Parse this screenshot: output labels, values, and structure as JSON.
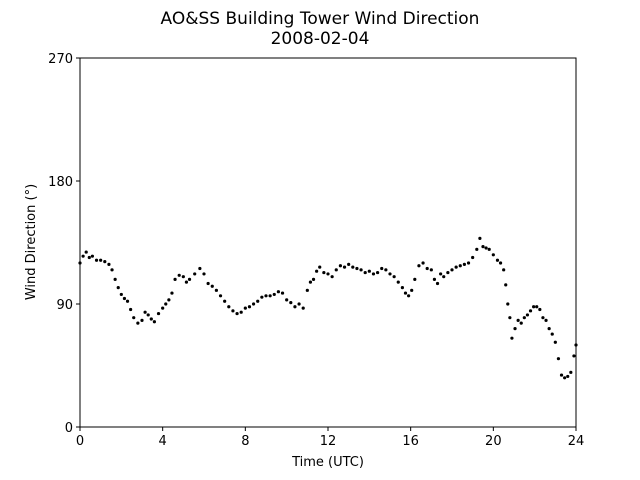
{
  "chart_data": {
    "type": "scatter",
    "title": "AO&SS Building Tower Wind Direction",
    "subtitle": "2008-02-04",
    "x_label": "Time (UTC)",
    "y_label": "Wind Direction (°)",
    "xlim": [
      0,
      24
    ],
    "xticks": [
      0,
      4,
      8,
      12,
      16,
      20,
      24
    ],
    "ylim": [
      0,
      270
    ],
    "yticks": [
      0,
      90,
      180,
      270
    ],
    "x": [
      0,
      0.15,
      0.3,
      0.45,
      0.6,
      0.8,
      1.0,
      1.2,
      1.4,
      1.55,
      1.7,
      1.85,
      2.0,
      2.15,
      2.3,
      2.45,
      2.6,
      2.8,
      3.0,
      3.15,
      3.3,
      3.45,
      3.6,
      3.8,
      4.0,
      4.15,
      4.3,
      4.45,
      4.6,
      4.8,
      5.0,
      5.15,
      5.3,
      5.55,
      5.8,
      6.0,
      6.2,
      6.4,
      6.6,
      6.8,
      7.0,
      7.2,
      7.4,
      7.6,
      7.8,
      8.0,
      8.2,
      8.4,
      8.6,
      8.8,
      9.0,
      9.2,
      9.4,
      9.6,
      9.8,
      10.0,
      10.2,
      10.4,
      10.6,
      10.8,
      11.0,
      11.15,
      11.3,
      11.45,
      11.6,
      11.8,
      12.0,
      12.2,
      12.4,
      12.6,
      12.8,
      13.0,
      13.2,
      13.4,
      13.6,
      13.8,
      14.0,
      14.2,
      14.4,
      14.6,
      14.8,
      15.0,
      15.2,
      15.4,
      15.6,
      15.75,
      15.9,
      16.05,
      16.2,
      16.4,
      16.6,
      16.8,
      17.0,
      17.15,
      17.3,
      17.45,
      17.6,
      17.8,
      18.0,
      18.2,
      18.4,
      18.6,
      18.8,
      19.0,
      19.2,
      19.35,
      19.5,
      19.65,
      19.8,
      20.0,
      20.2,
      20.35,
      20.5,
      20.6,
      20.7,
      20.8,
      20.9,
      21.05,
      21.2,
      21.35,
      21.5,
      21.65,
      21.8,
      21.95,
      22.1,
      22.25,
      22.4,
      22.55,
      22.7,
      22.85,
      23.0,
      23.15,
      23.3,
      23.45,
      23.6,
      23.75,
      23.9,
      24.0
    ],
    "series": [
      {
        "name": "Wind Direction",
        "color": "#000000",
        "values": [
          120,
          125,
          128,
          124,
          125,
          122,
          122,
          121,
          119,
          115,
          108,
          102,
          97,
          94,
          92,
          86,
          80,
          76,
          78,
          84,
          82,
          79,
          77,
          83,
          87,
          90,
          93,
          98,
          108,
          111,
          110,
          106,
          108,
          112,
          116,
          112,
          105,
          103,
          100,
          96,
          92,
          88,
          85,
          83,
          84,
          87,
          88,
          90,
          92,
          95,
          96,
          96,
          97,
          99,
          98,
          93,
          91,
          88,
          90,
          87,
          100,
          106,
          108,
          114,
          117,
          113,
          112,
          110,
          115,
          118,
          117,
          119,
          117,
          116,
          115,
          113,
          114,
          112,
          113,
          116,
          115,
          112,
          110,
          106,
          102,
          98,
          96,
          100,
          108,
          118,
          120,
          116,
          115,
          108,
          105,
          112,
          110,
          113,
          115,
          117,
          118,
          119,
          120,
          124,
          130,
          138,
          132,
          131,
          130,
          126,
          122,
          120,
          115,
          104,
          90,
          80,
          65,
          72,
          78,
          76,
          80,
          82,
          85,
          88,
          88,
          86,
          80,
          78,
          72,
          68,
          62,
          50,
          38,
          36,
          37,
          40,
          52,
          60
        ]
      }
    ]
  }
}
